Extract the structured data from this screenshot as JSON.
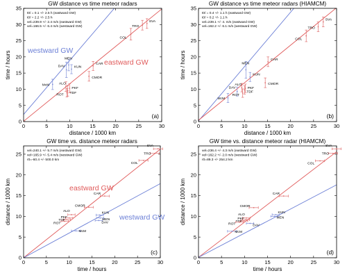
{
  "chart_data": [
    {
      "type": "scatter",
      "title": "GW distance vs time meteor radars",
      "xlabel": "distance / 1000 km",
      "ylabel": "time / hours",
      "xlim": [
        0,
        30
      ],
      "ylim": [
        0,
        35
      ],
      "xticks": [
        0,
        5,
        10,
        15,
        20,
        25,
        30
      ],
      "yticks": [
        0,
        5,
        10,
        15,
        20,
        25,
        30,
        35
      ],
      "panel_label": "(a)",
      "grid": false,
      "annotations": [
        "t0/ = 0.1 +/- 2.5 h (eastward GW)",
        "t0/ = 2.2 +/- 2.5 h",
        "vel=239.9 +/- 2.4 m/s (eastward GW)",
        "vel=166.5 +/- 6.4 m/s (westward GW)"
      ],
      "series": [
        {
          "name": "westward GW",
          "color": "#6b7fd6",
          "line": [
            [
              0,
              2.2
            ],
            [
              21.5,
              38
            ]
          ]
        },
        {
          "name": "eastward GW",
          "color": "#e05a5a",
          "line": [
            [
              0,
              0.1
            ],
            [
              30,
              34.8
            ]
          ]
        }
      ],
      "points": [
        {
          "label": "McM",
          "x": 6.3,
          "y": 11.5,
          "err": 1.6
        },
        {
          "label": "DAV",
          "x": 9.3,
          "y": 16.0,
          "err": 2.4
        },
        {
          "label": "MEN",
          "x": 9.8,
          "y": 17.5,
          "err": 1.8
        },
        {
          "label": "KUN",
          "x": 10.4,
          "y": 16.2,
          "err": 1.4
        },
        {
          "label": "ALO",
          "x": 9.2,
          "y": 10.8,
          "err": 1.5
        },
        {
          "label": "PKF",
          "x": 10.0,
          "y": 10.3,
          "err": 1.4
        },
        {
          "label": "TDF",
          "x": 9.6,
          "y": 9.5,
          "err": 1.6
        },
        {
          "label": "ROT",
          "x": 9.4,
          "y": 8.9,
          "err": 1.3
        },
        {
          "label": "CMOR",
          "x": 14.2,
          "y": 14.0,
          "err": 1.5
        },
        {
          "label": "CAR",
          "x": 15.1,
          "y": 17.2,
          "err": 1.4
        },
        {
          "label": "COL",
          "x": 23.3,
          "y": 27.0,
          "err": 1.8
        },
        {
          "label": "TRO",
          "x": 25.8,
          "y": 29.8,
          "err": 1.5
        },
        {
          "label": "SVA",
          "x": 26.8,
          "y": 30.3,
          "err": 1.5
        }
      ]
    },
    {
      "type": "scatter",
      "title": "GW distance vs time meteor radars (HIAMCM)",
      "xlabel": "distance / 1000 km",
      "ylabel": "time / hours",
      "xlim": [
        0,
        30
      ],
      "ylim": [
        0,
        35
      ],
      "xticks": [
        0,
        5,
        10,
        15,
        20,
        25,
        30
      ],
      "yticks": [
        0,
        5,
        10,
        15,
        20,
        25,
        30,
        35
      ],
      "panel_label": "(b)",
      "grid": false,
      "annotations": [
        "t0/ = 0.4 +/- 1.1 h (eastward GW)",
        "t0/ = 0.2 +/- 1.1 h",
        "vel=239.1 +/- 4. m/s (eastward GW)",
        "vel=162.2 +/- 6.1 m/s (westward GW)"
      ],
      "series": [
        {
          "name": "westward GW",
          "color": "#6b7fd6",
          "line": [
            [
              0,
              0.2
            ],
            [
              22.5,
              38
            ]
          ]
        },
        {
          "name": "eastward GW",
          "color": "#e05a5a",
          "line": [
            [
              0,
              0.4
            ],
            [
              30,
              35.2
            ]
          ]
        }
      ],
      "points": [
        {
          "label": "McM",
          "x": 6.4,
          "y": 7.3,
          "err": 1.4
        },
        {
          "label": "DAV",
          "x": 8.4,
          "y": 9.3,
          "err": 1.4
        },
        {
          "label": "MEN",
          "x": 10.3,
          "y": 16.0,
          "err": 2.6
        },
        {
          "label": "KUN",
          "x": 11.2,
          "y": 13.8,
          "err": 1.4
        },
        {
          "label": "ALO",
          "x": 9.4,
          "y": 10.5,
          "err": 1.3
        },
        {
          "label": "PKF",
          "x": 10.2,
          "y": 10.3,
          "err": 1.3
        },
        {
          "label": "TDF",
          "x": 10.0,
          "y": 9.8,
          "err": 1.3
        },
        {
          "label": "ROT",
          "x": 9.6,
          "y": 8.8,
          "err": 1.3
        },
        {
          "label": "CMOR",
          "x": 14.5,
          "y": 12.0,
          "err": 1.5
        },
        {
          "label": "CAR",
          "x": 15.1,
          "y": 18.5,
          "err": 1.5
        },
        {
          "label": "COL",
          "x": 23.4,
          "y": 26.5,
          "err": 1.8
        },
        {
          "label": "TRO",
          "x": 26.0,
          "y": 29.3,
          "err": 1.5
        },
        {
          "label": "SVA",
          "x": 27.1,
          "y": 30.8,
          "err": 1.5
        }
      ]
    },
    {
      "type": "scatter",
      "title": "GW time vs. distance meteor radars",
      "xlabel": "time / hours",
      "ylabel": "distance / 1000 km",
      "xlim": [
        0,
        30
      ],
      "ylim": [
        0,
        27
      ],
      "xticks": [
        0,
        5,
        10,
        15,
        20,
        25,
        30
      ],
      "yticks": [
        0,
        5,
        10,
        15,
        20,
        25
      ],
      "panel_label": "(c)",
      "grid": false,
      "annotations": [
        "vel=240.1 +/- 5.7 m/s (eastward GW)",
        "vel=165.9 +/- 5.4 m/s (westward GW)",
        "r0=-60.4 +/- 500.0 km"
      ],
      "series": [
        {
          "name": "eastward GW",
          "color": "#e05a5a",
          "line": [
            [
              0,
              0
            ],
            [
              30,
              26.2
            ]
          ]
        },
        {
          "name": "westward GW",
          "color": "#6b7fd6",
          "line": [
            [
              0,
              0
            ],
            [
              30,
              17.9
            ]
          ]
        }
      ],
      "points": [
        {
          "label": "McM",
          "x": 11.5,
          "y": 6.5,
          "err": 0.5
        },
        {
          "label": "DAV",
          "x": 16.5,
          "y": 9.0,
          "err": 0.4
        },
        {
          "label": "MEN",
          "x": 16.8,
          "y": 9.6,
          "err": 0.4
        },
        {
          "label": "KUN",
          "x": 16.7,
          "y": 10.3,
          "err": 0.4
        },
        {
          "label": "ALO",
          "x": 10.5,
          "y": 10.4,
          "err": 0.4
        },
        {
          "label": "PKF",
          "x": 10.0,
          "y": 9.6,
          "err": 0.4
        },
        {
          "label": "TDF",
          "x": 9.5,
          "y": 9.2,
          "err": 0.4
        },
        {
          "label": "ROT",
          "x": 9.0,
          "y": 8.8,
          "err": 0.4
        },
        {
          "label": "CMOR",
          "x": 14.3,
          "y": 12.2,
          "err": 0.5
        },
        {
          "label": "CAR",
          "x": 17.8,
          "y": 14.9,
          "err": 0.5
        },
        {
          "label": "COL",
          "x": 26.3,
          "y": 23.5,
          "err": 0.5
        },
        {
          "label": "TRO",
          "x": 28.8,
          "y": 25.2,
          "err": 0.5
        },
        {
          "label": "SVA",
          "x": 29.5,
          "y": 26.3,
          "err": 0.5
        }
      ],
      "series_labels": [
        {
          "name": "eastward GW",
          "color": "#e05a5a"
        },
        {
          "name": "westward GW",
          "color": "#6b7fd6"
        }
      ]
    },
    {
      "type": "scatter",
      "title": "GW time vs. distance meteor radar (HIAMCM)",
      "xlabel": "time / hours",
      "ylabel": "distance / 1000 km",
      "xlim": [
        0,
        30
      ],
      "ylim": [
        0,
        27
      ],
      "xticks": [
        0,
        5,
        10,
        15,
        20,
        25,
        30
      ],
      "yticks": [
        0,
        5,
        10,
        15,
        20,
        25
      ],
      "panel_label": "(d)",
      "grid": false,
      "annotations": [
        "vel=236.4 +/- 4.3 m/s (eastward GW)",
        "vel=162.2 +/- 2.0 m/s (westward GW)",
        "r0=89.3 +/- 254.2 km"
      ],
      "series": [
        {
          "name": "eastward GW",
          "color": "#e05a5a",
          "line": [
            [
              0,
              0.1
            ],
            [
              30,
              25.6
            ]
          ]
        },
        {
          "name": "westward GW",
          "color": "#6b7fd6",
          "line": [
            [
              0,
              0.1
            ],
            [
              30,
              17.6
            ]
          ]
        }
      ],
      "points": [
        {
          "label": "McM",
          "x": 7.3,
          "y": 6.4,
          "err": 0.5
        },
        {
          "label": "DAV",
          "x": 11.2,
          "y": 8.3,
          "err": 0.4
        },
        {
          "label": "MEN",
          "x": 16.5,
          "y": 10.0,
          "err": 0.4
        },
        {
          "label": "KUN",
          "x": 16.8,
          "y": 10.4,
          "err": 0.4
        },
        {
          "label": "ALO",
          "x": 10.4,
          "y": 9.6,
          "err": 0.4
        },
        {
          "label": "PKF",
          "x": 10.3,
          "y": 9.2,
          "err": 0.4
        },
        {
          "label": "TDF",
          "x": 9.9,
          "y": 8.9,
          "err": 0.4
        },
        {
          "label": "ROT",
          "x": 8.9,
          "y": 8.6,
          "err": 0.4
        },
        {
          "label": "CMOR",
          "x": 12.0,
          "y": 12.1,
          "err": 0.5
        },
        {
          "label": "CAR",
          "x": 18.5,
          "y": 14.9,
          "err": 0.5
        },
        {
          "label": "COL",
          "x": 26.4,
          "y": 23.4,
          "err": 0.5
        },
        {
          "label": "TRO",
          "x": 29.2,
          "y": 25.2,
          "err": 0.5
        },
        {
          "label": "SVA",
          "x": 30.0,
          "y": 26.3,
          "err": 0.5
        }
      ]
    }
  ]
}
